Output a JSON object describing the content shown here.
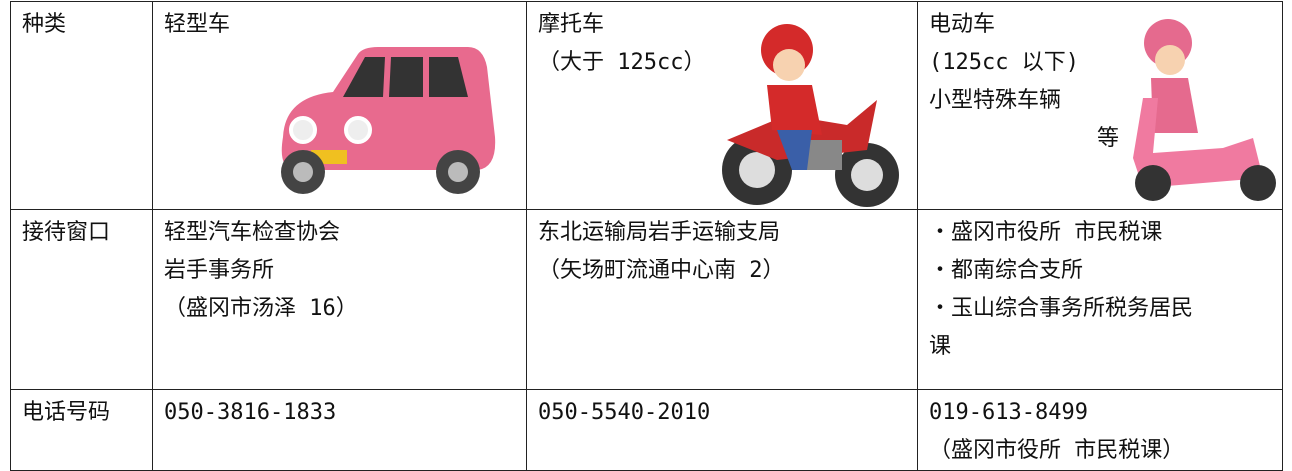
{
  "table": {
    "rows": [
      [
        [
          "种类"
        ],
        [
          "轻型车"
        ],
        [
          "摩托车",
          "（大于 125cc）"
        ],
        [
          "电动车",
          "(125cc 以下)",
          "小型特殊车辆",
          "等"
        ]
      ],
      [
        [
          "接待窗口"
        ],
        [
          "轻型汽车检查协会",
          "岩手事务所",
          "（盛冈市汤泽 16）"
        ],
        [
          "东北运输局岩手运输支局",
          "（矢场町流通中心南 2）"
        ],
        [
          "・盛冈市役所 市民税课",
          "・都南综合支所",
          "・玉山综合事务所税务居民",
          "课"
        ]
      ],
      [
        [
          "电话号码"
        ],
        [
          "050-3816-1833"
        ],
        [
          "050-5540-2010"
        ],
        [
          "019-613-8499",
          "（盛冈市役所 市民税课）"
        ]
      ]
    ]
  }
}
